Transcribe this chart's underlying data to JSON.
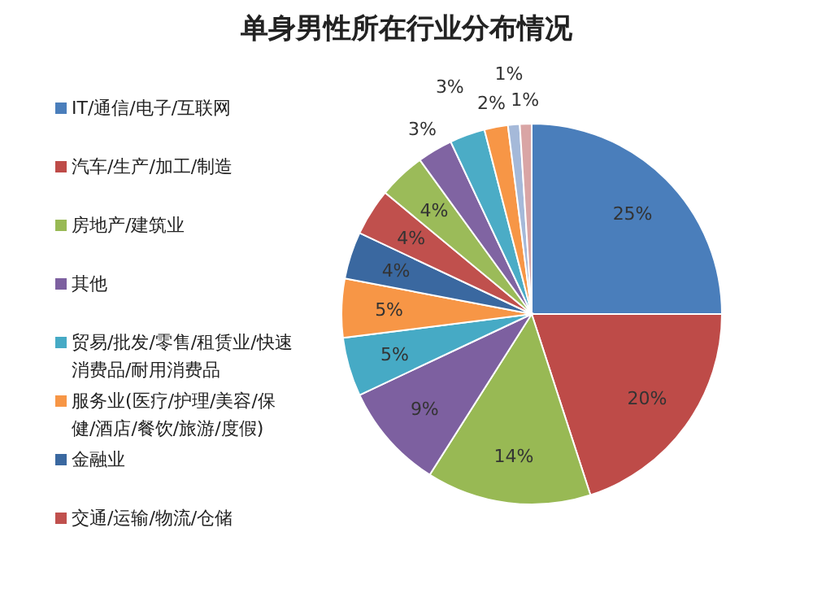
{
  "chart_data": {
    "type": "pie",
    "title": "单身男性所在行业分布情况",
    "categories": [
      "IT/通信/电子/互联网",
      "汽车/生产/加工/制造",
      "房地产/建筑业",
      "其他",
      "贸易/批发/零售/租赁业/快速消费品/耐用消费品",
      "服务业(医疗/护理/美容/保健/酒店/餐饮/旅游/度假)",
      "金融业",
      "交通/运输/物流/仓储",
      null,
      null,
      null,
      null,
      null,
      null
    ],
    "values": [
      25,
      20,
      14,
      9,
      5,
      5,
      4,
      4,
      4,
      3,
      3,
      2,
      1,
      1
    ],
    "colors": [
      "#4a7ebb",
      "#be4b48",
      "#98b954",
      "#7d60a0",
      "#46aac5",
      "#f79646",
      "#3a68a0",
      "#c0504d",
      "#9bbb59",
      "#8064a2",
      "#4bacc6",
      "#f79646",
      "#a5b9d9",
      "#d9a5a5"
    ],
    "value_labels": [
      "25%",
      "20%",
      "14%",
      "9%",
      "5%",
      "5%",
      "4%",
      "4%",
      "4%",
      "3%",
      "3%",
      "2%",
      "1%",
      "1%"
    ],
    "legend": "left"
  }
}
